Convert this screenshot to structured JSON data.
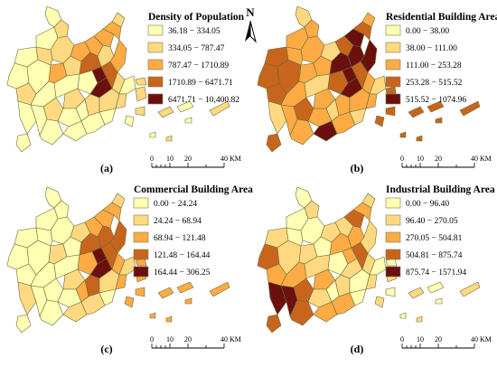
{
  "north_arrow": {
    "label": "N"
  },
  "panels": [
    {
      "letter": "(a)",
      "legend_title": "Density of Population",
      "classes": [
        {
          "label": "36.18 − 334.05",
          "color": "#ffffb4"
        },
        {
          "label": "334.05 − 787.47",
          "color": "#fed981"
        },
        {
          "label": "787.47 − 1710.89",
          "color": "#fdab45"
        },
        {
          "label": "1710.89 − 6471.71",
          "color": "#c8651c"
        },
        {
          "label": "6471.71 − 10,400.82",
          "color": "#6b0f0f"
        }
      ],
      "scalebar": {
        "ticks": [
          "0",
          "10",
          "20",
          "40"
        ],
        "unit": "KM"
      }
    },
    {
      "letter": "(b)",
      "legend_title": "Residential Building Area",
      "classes": [
        {
          "label": "0.00 − 38.00",
          "color": "#ffffb4"
        },
        {
          "label": "38.00 − 111.00",
          "color": "#fed981"
        },
        {
          "label": "111.00 − 253.28",
          "color": "#fdab45"
        },
        {
          "label": "253.28 − 515.52",
          "color": "#c8651c"
        },
        {
          "label": "515.52 − 1074.96",
          "color": "#6b0f0f"
        }
      ],
      "scalebar": {
        "ticks": [
          "0",
          "10",
          "20",
          "40"
        ],
        "unit": "KM"
      }
    },
    {
      "letter": "(c)",
      "legend_title": "Commercial Building Area",
      "classes": [
        {
          "label": "0.00 − 24.24",
          "color": "#ffffb4"
        },
        {
          "label": "24.24 − 68.94",
          "color": "#fed981"
        },
        {
          "label": "68.94 − 121.48",
          "color": "#fdab45"
        },
        {
          "label": "121.48 − 164.44",
          "color": "#c8651c"
        },
        {
          "label": "164.44 − 306.25",
          "color": "#6b0f0f"
        }
      ],
      "scalebar": {
        "ticks": [
          "0",
          "10",
          "20",
          "40"
        ],
        "unit": "KM"
      }
    },
    {
      "letter": "(d)",
      "legend_title": "Industrial Building Area",
      "classes": [
        {
          "label": "0.00 − 96.40",
          "color": "#ffffb4"
        },
        {
          "label": "96.40 − 270.05",
          "color": "#fed981"
        },
        {
          "label": "270.05 − 504.81",
          "color": "#fdab45"
        },
        {
          "label": "504.81 − 875.74",
          "color": "#c8651c"
        },
        {
          "label": "875.74 − 1571.94",
          "color": "#6b0f0f"
        }
      ],
      "scalebar": {
        "ticks": [
          "0",
          "10",
          "20",
          "40"
        ],
        "unit": "KM"
      }
    }
  ]
}
